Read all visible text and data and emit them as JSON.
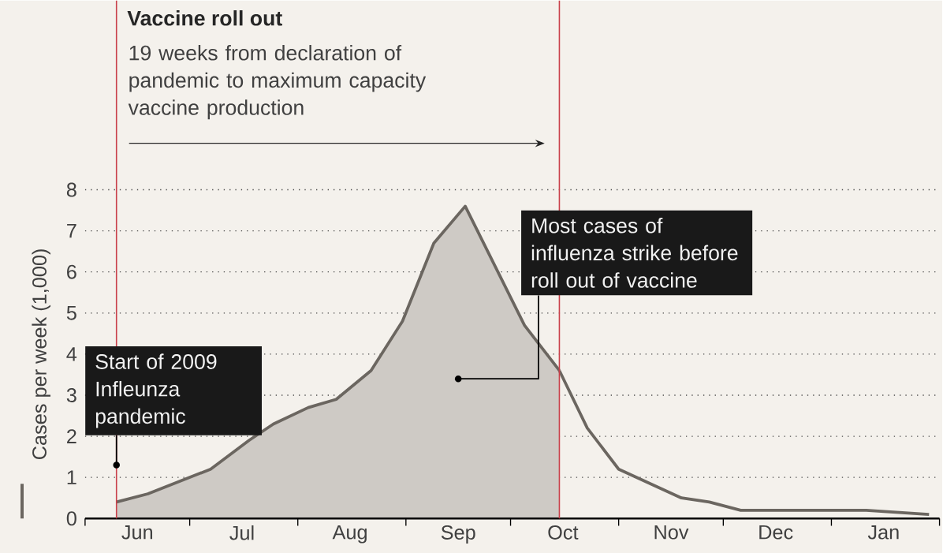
{
  "chart_data": {
    "type": "area",
    "title": "Vaccine roll out",
    "subtitle": "19 weeks from declaration of pandemic to maximum capacity vaccine production",
    "ylabel": "Cases per week (1,000)",
    "series": [
      {
        "color": "#6b6660",
        "x": [
          "2009-06-10",
          "2009-06-19",
          "2009-07-07",
          "2009-07-18",
          "2009-07-25",
          "2009-08-04",
          "2009-08-12",
          "2009-08-22",
          "2009-08-31",
          "2009-09-09",
          "2009-09-18",
          "2009-10-05",
          "2009-10-15"
        ],
        "values": [
          0.4,
          0.6,
          1.2,
          1.9,
          2.3,
          2.7,
          2.9,
          3.6,
          4.8,
          6.7,
          7.6,
          4.7,
          3.6
        ]
      },
      {
        "type": "line",
        "color": "#6b6660",
        "x": [
          "2009-10-15",
          "2009-10-23",
          "2009-11-01",
          "2009-11-19",
          "2009-11-27",
          "2009-12-06",
          "2009-12-17",
          "2010-01-11",
          "2010-01-29"
        ],
        "values": [
          3.6,
          2.2,
          1.2,
          0.5,
          0.4,
          0.2,
          0.2,
          0.2,
          0.1
        ]
      }
    ],
    "xlim": [
      "2009-06-01",
      "2010-02-01"
    ],
    "xticks": [
      {
        "value": "2009-06-01",
        "label": null
      },
      {
        "value": "2009-06-16",
        "label": "Jun"
      },
      {
        "value": "2009-07-01",
        "label": null
      },
      {
        "value": "2009-07-16",
        "label": "Jul"
      },
      {
        "value": "2009-08-01",
        "label": null
      },
      {
        "value": "2009-08-16",
        "label": "Aug"
      },
      {
        "value": "2009-09-01",
        "label": null
      },
      {
        "value": "2009-09-16",
        "label": "Sep"
      },
      {
        "value": "2009-10-01",
        "label": null
      },
      {
        "value": "2009-10-16",
        "label": "Oct"
      },
      {
        "value": "2009-11-01",
        "label": null
      },
      {
        "value": "2009-11-16",
        "label": "Nov"
      },
      {
        "value": "2009-12-01",
        "label": null
      },
      {
        "value": "2009-12-16",
        "label": "Dec"
      },
      {
        "value": "2010-01-01",
        "label": null
      },
      {
        "value": "2010-01-16",
        "label": "Jan"
      },
      {
        "value": "2010-02-01",
        "label": null
      }
    ],
    "ylim": [
      0,
      8
    ],
    "yticks": [
      0,
      1,
      2,
      3,
      4,
      5,
      6,
      7,
      8
    ],
    "grid": "y",
    "ref_lines": [
      {
        "axis": "x",
        "value": "2009-06-10",
        "color": "#c9404a"
      },
      {
        "axis": "x",
        "value": "2009-10-15",
        "color": "#c9404a"
      }
    ],
    "annotations": [
      {
        "text": "Start of 2009 Infleunza pandemic",
        "x": "2009-06-10",
        "y": 1.3
      },
      "Most cases of influenza strike before roll out of vaccine"
    ]
  }
}
